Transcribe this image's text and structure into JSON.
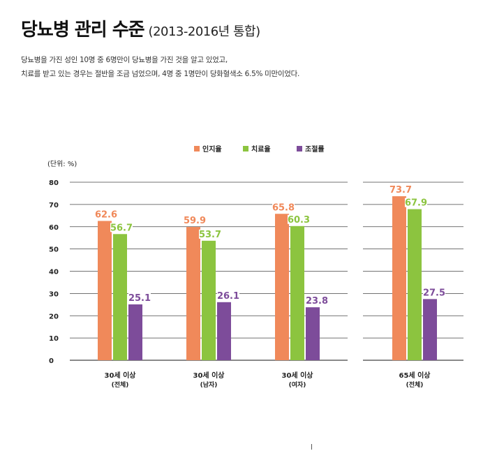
{
  "header": {
    "title": "당뇨병 관리 수준",
    "subtitle": "(2013-2016년 통합)",
    "description_lines": [
      "당뇨병을 가진 성인 10명 중 6명만이 당뇨병을 가진 것을 알고 있었고,",
      "치료를 받고 있는 경우는 절반을 조금 넘었으며, 4명 중 1명만이 당화혈색소 6.5% 미만이었다."
    ]
  },
  "chart_data": {
    "type": "bar",
    "unit_label": "(단위: %)",
    "categories": [
      {
        "line1": "30세 이상",
        "line2": "(전체)"
      },
      {
        "line1": "30세 이상",
        "line2": "(남자)"
      },
      {
        "line1": "30세 이상",
        "line2": "(여자)"
      },
      {
        "line1": "65세 이상",
        "line2": "(전체)"
      }
    ],
    "series": [
      {
        "name": "인지율",
        "color": "#f0895a",
        "values": [
          62.6,
          59.9,
          65.8,
          73.7
        ]
      },
      {
        "name": "치료율",
        "color": "#8cc43f",
        "values": [
          56.7,
          53.7,
          60.3,
          67.9
        ]
      },
      {
        "name": "조절률",
        "color": "#7d4c9a",
        "values": [
          25.1,
          26.1,
          23.8,
          27.5
        ]
      }
    ],
    "yticks": [
      "0",
      "10",
      "20",
      "30",
      "40",
      "50",
      "60",
      "70",
      "80"
    ],
    "ylim": [
      0,
      80
    ],
    "grid": true,
    "legend": "top-center"
  }
}
